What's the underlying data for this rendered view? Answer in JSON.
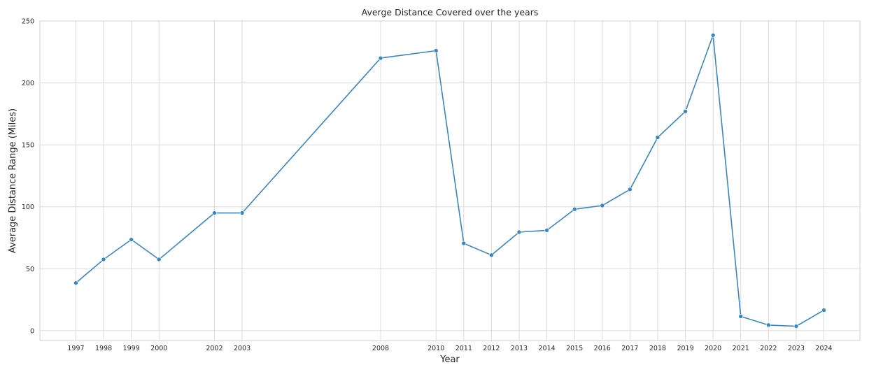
{
  "chart_data": {
    "type": "line",
    "title": "Averge Distance Covered over the years",
    "xlabel": "Year",
    "ylabel": "Average Distance Range (Miles)",
    "ylim": [
      -8,
      250
    ],
    "yticks": [
      0,
      50,
      100,
      150,
      200,
      250
    ],
    "xlim": [
      1995.7,
      2025.3
    ],
    "grid": true,
    "series": [
      {
        "color": "#3a87c0",
        "marker": "circle",
        "x": [
          1997,
          1998,
          1999,
          2000,
          2002,
          2003,
          2008,
          2010,
          2011,
          2012,
          2013,
          2014,
          2015,
          2016,
          2017,
          2018,
          2019,
          2020,
          2021,
          2022,
          2023,
          2024
        ],
        "y": [
          38.5,
          57.5,
          73.5,
          57.5,
          95,
          95,
          220,
          226,
          70.5,
          61,
          79.5,
          81,
          98,
          101,
          114,
          156,
          177,
          238.5,
          11.5,
          4.5,
          3.5,
          16.5
        ]
      }
    ]
  }
}
